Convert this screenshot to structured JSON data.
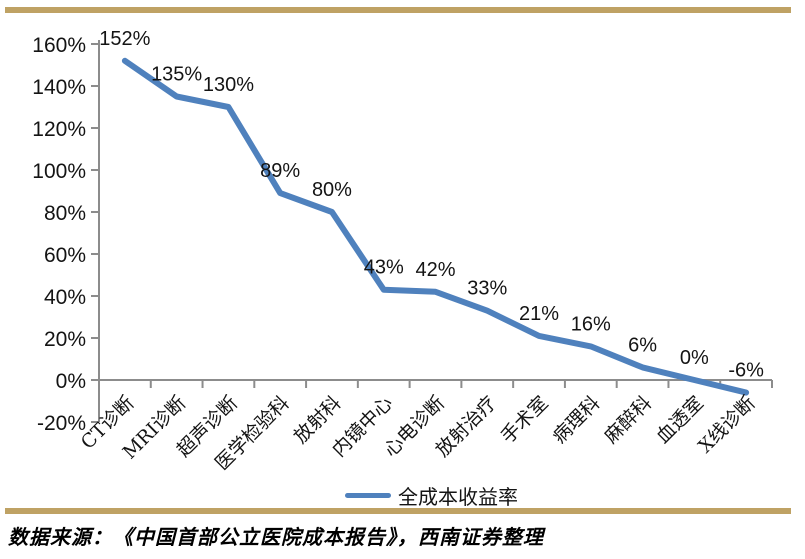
{
  "page": {
    "source_note": "数据来源：《中国首部公立医院成本报告》，西南证券整理"
  },
  "chart_data": {
    "type": "line",
    "title": "",
    "xlabel": "",
    "ylabel": "",
    "categories": [
      "CT诊断",
      "MRI诊断",
      "超声诊断",
      "医学检验科",
      "放射科",
      "内镜中心",
      "心电诊断",
      "放射治疗",
      "手术室",
      "病理科",
      "麻醉科",
      "血透室",
      "X线诊断"
    ],
    "series": [
      {
        "name": "全成本收益率",
        "values": [
          152,
          135,
          130,
          89,
          80,
          43,
          42,
          33,
          21,
          16,
          6,
          0,
          -6
        ]
      }
    ],
    "data_labels": [
      "152%",
      "135%",
      "130%",
      "89%",
      "80%",
      "43%",
      "42%",
      "33%",
      "21%",
      "16%",
      "6%",
      "0%",
      "-6%"
    ],
    "ylim": [
      -20,
      160
    ],
    "ytick_step": 20,
    "ytick_labels": [
      "160%",
      "140%",
      "120%",
      "100%",
      "80%",
      "60%",
      "40%",
      "20%",
      "0%",
      "-20%"
    ],
    "grid": false,
    "legend": {
      "label": "全成本收益率",
      "position": "bottom"
    },
    "colors": {
      "line": "#4F81BD",
      "axis": "#8C8C8C",
      "text": "#141414",
      "accent_bar": "#BFA264"
    }
  }
}
